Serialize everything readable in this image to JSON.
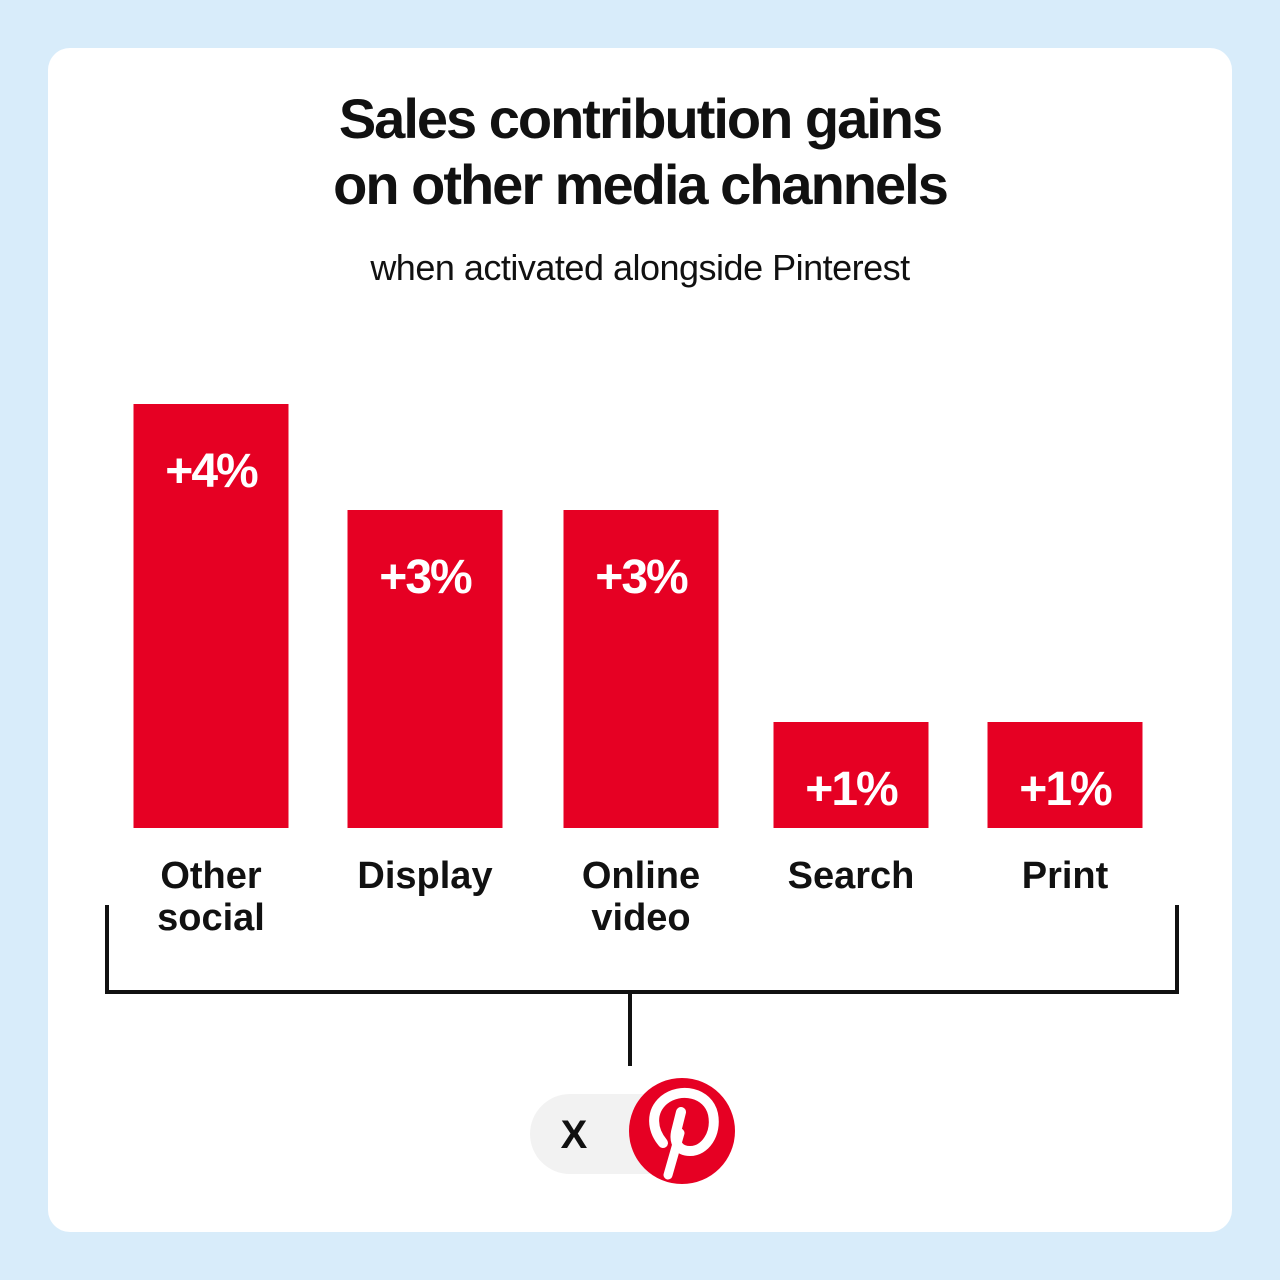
{
  "title_lines": [
    "Sales contribution gains",
    "on other media channels"
  ],
  "subtitle": "when activated alongside Pinterest",
  "colors": {
    "background": "#d8ecfa",
    "card": "#ffffff",
    "bar": "#e60023",
    "text": "#111111",
    "brand": "#e60023"
  },
  "chart_data": {
    "type": "bar",
    "categories": [
      [
        "Other",
        "social"
      ],
      [
        "Display"
      ],
      [
        "Online",
        "video"
      ],
      [
        "Search"
      ],
      [
        "Print"
      ]
    ],
    "values": [
      4,
      3,
      3,
      1,
      1
    ],
    "value_labels": [
      "+4%",
      "+3%",
      "+3%",
      "+1%",
      "+1%"
    ],
    "unit": "%",
    "grid": false,
    "axes_visible": false
  },
  "footer": {
    "multiplier_text": "X",
    "logo_icon": "pinterest-logo-icon"
  }
}
